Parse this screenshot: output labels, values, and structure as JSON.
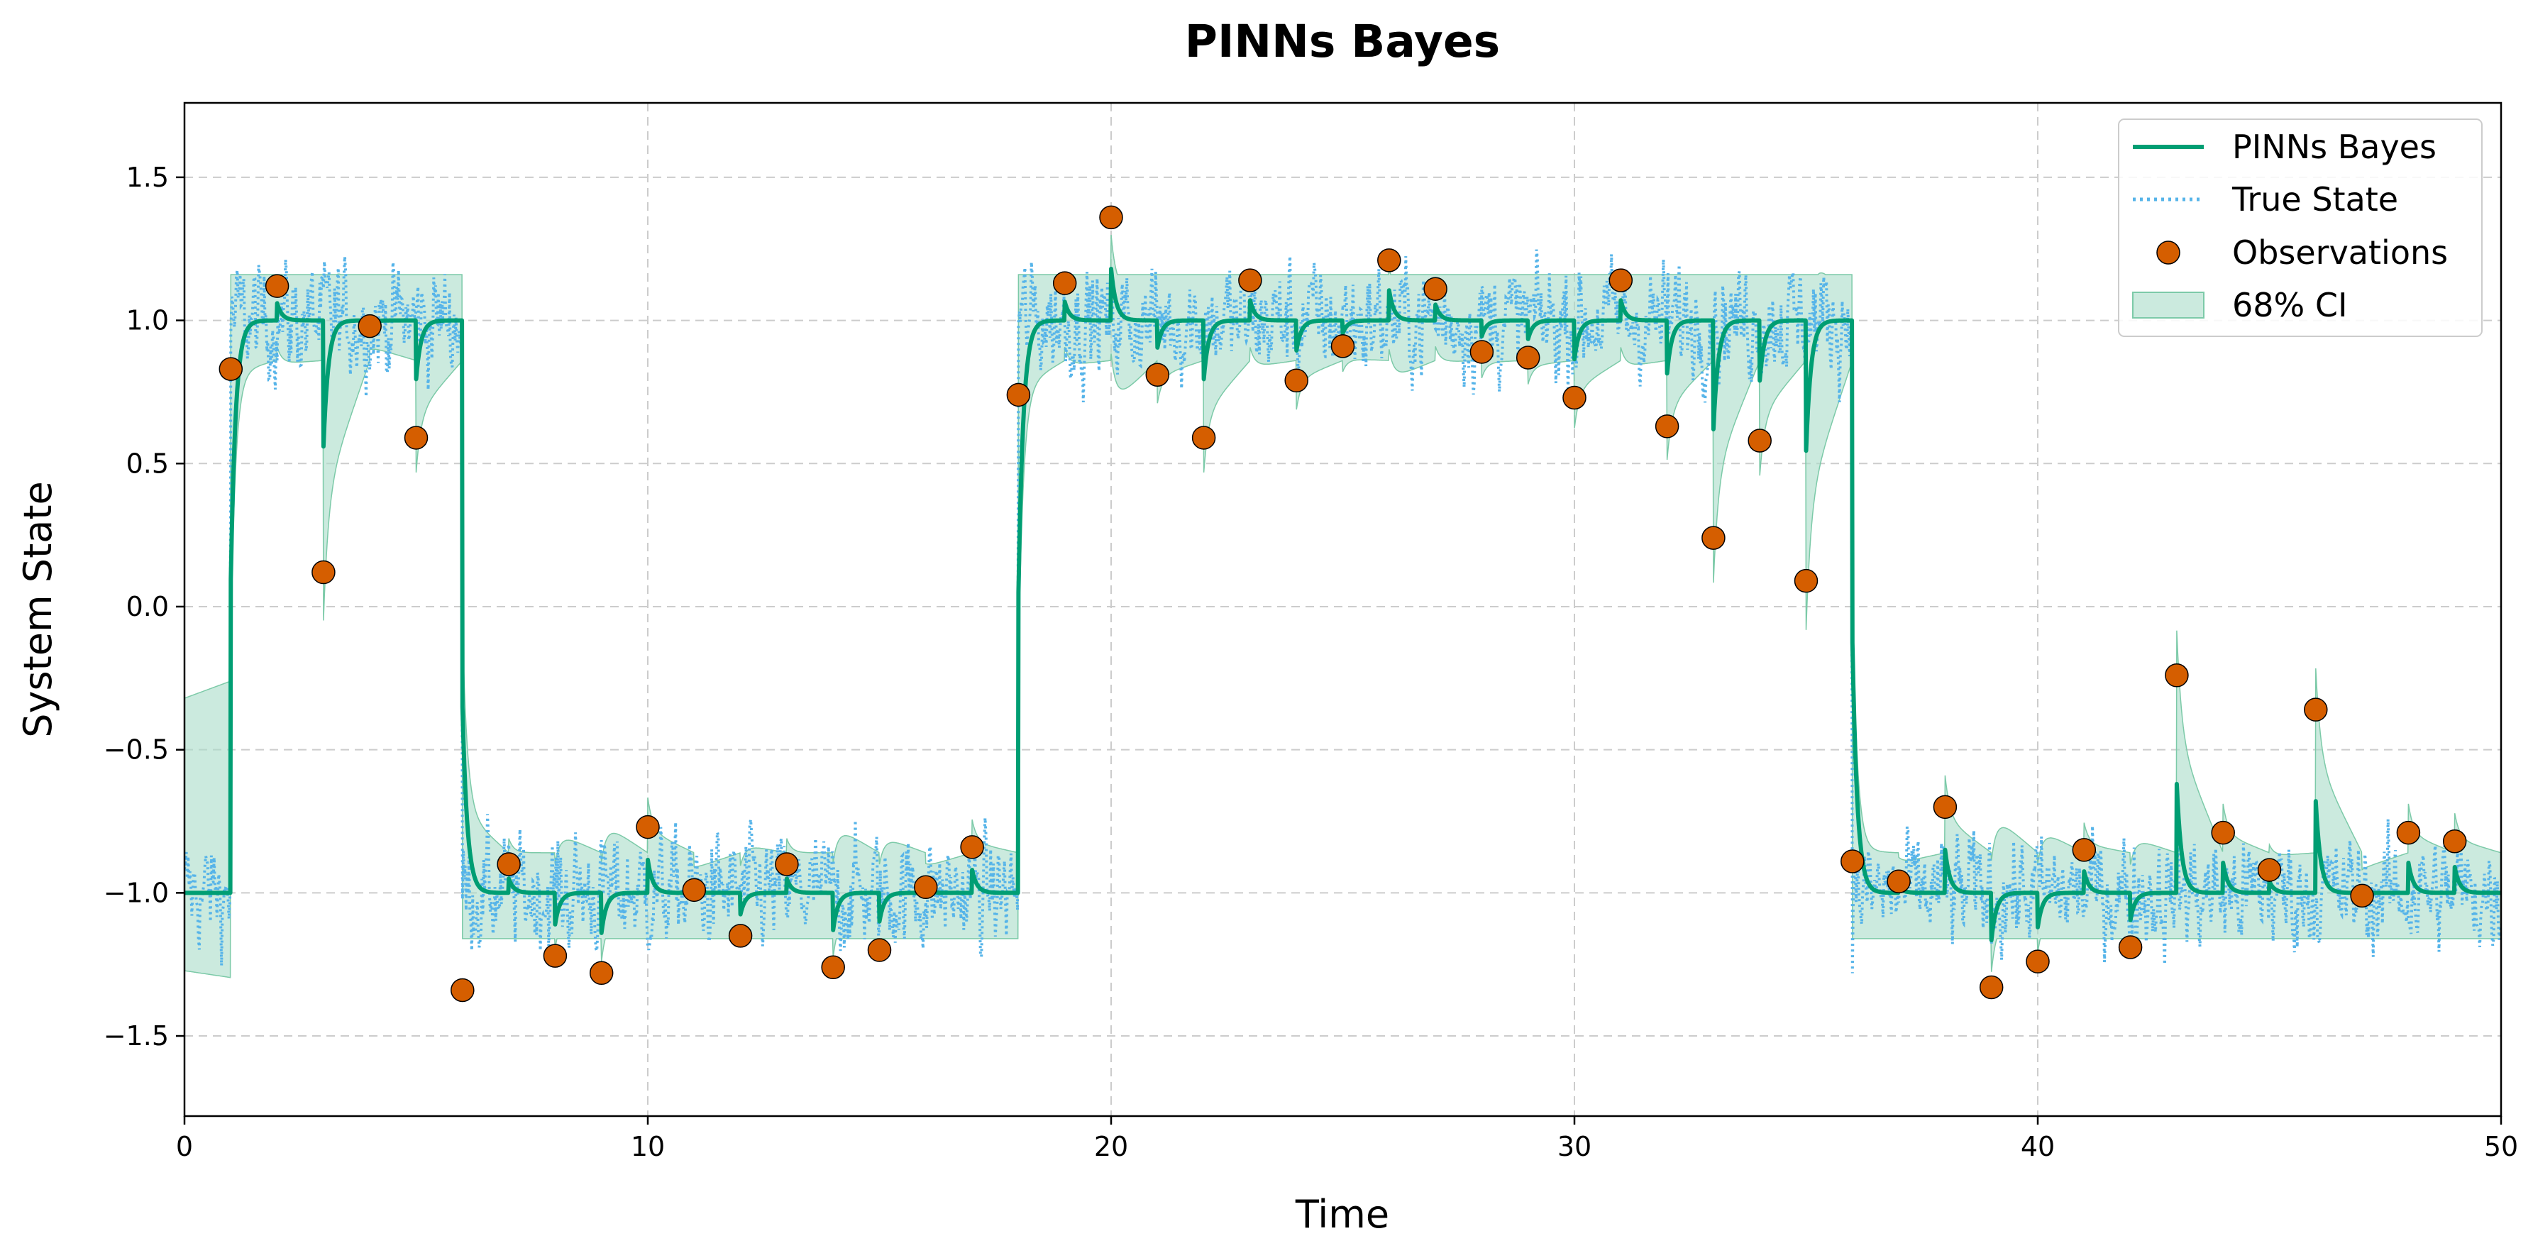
{
  "chart_data": {
    "type": "line",
    "title": "PINNs Bayes",
    "xlabel": "Time",
    "ylabel": "System State",
    "xlim": [
      0,
      50
    ],
    "ylim": [
      -1.78,
      1.76
    ],
    "x_ticks": [
      0,
      10,
      20,
      30,
      40,
      50
    ],
    "y_ticks": [
      -1.5,
      -1.0,
      -0.5,
      0.0,
      0.5,
      1.0,
      1.5
    ],
    "x_tick_labels": [
      "0",
      "10",
      "20",
      "30",
      "40",
      "50"
    ],
    "y_tick_labels": [
      "−1.5",
      "−1.0",
      "−0.5",
      "0.0",
      "0.5",
      "1.0",
      "1.5"
    ],
    "grid": true,
    "legend_position": "top-right",
    "legend": [
      "PINNs Bayes",
      "True State",
      "Observations",
      "68% CI"
    ],
    "colors": {
      "pinns": "#009e73",
      "true_state": "#56b4e9",
      "observations": "#d55e00",
      "ci": "#a8dcc8",
      "grid": "#cccccc"
    },
    "regimes": [
      {
        "start": 0,
        "end": 1,
        "level": -1.0
      },
      {
        "start": 1,
        "end": 6,
        "level": 1.0
      },
      {
        "start": 6,
        "end": 18,
        "level": -1.0
      },
      {
        "start": 18,
        "end": 36,
        "level": 1.0
      },
      {
        "start": 36,
        "end": 50,
        "level": -1.0
      }
    ],
    "observations": {
      "x": [
        1,
        2,
        3,
        4,
        5,
        6,
        7,
        8,
        9,
        10,
        11,
        12,
        13,
        14,
        15,
        16,
        17,
        18,
        19,
        20,
        21,
        22,
        23,
        24,
        25,
        26,
        27,
        28,
        29,
        30,
        31,
        32,
        33,
        34,
        35,
        36,
        37,
        38,
        39,
        40,
        41,
        42,
        43,
        44,
        45,
        46,
        47,
        48,
        49
      ],
      "y": [
        0.83,
        1.12,
        0.12,
        0.98,
        0.59,
        -1.34,
        -0.9,
        -1.22,
        -1.28,
        -0.77,
        -0.99,
        -1.15,
        -0.9,
        -1.26,
        -1.2,
        -0.98,
        -0.84,
        0.74,
        1.13,
        1.36,
        0.81,
        0.59,
        1.14,
        0.79,
        0.91,
        1.21,
        1.11,
        0.89,
        0.87,
        0.73,
        1.14,
        0.63,
        0.24,
        0.58,
        0.09,
        -0.89,
        -0.96,
        -0.7,
        -1.33,
        -1.24,
        -0.85,
        -1.19,
        -0.24,
        -0.79,
        -0.92,
        -0.36,
        -1.01,
        -0.79,
        -0.82
      ]
    }
  }
}
